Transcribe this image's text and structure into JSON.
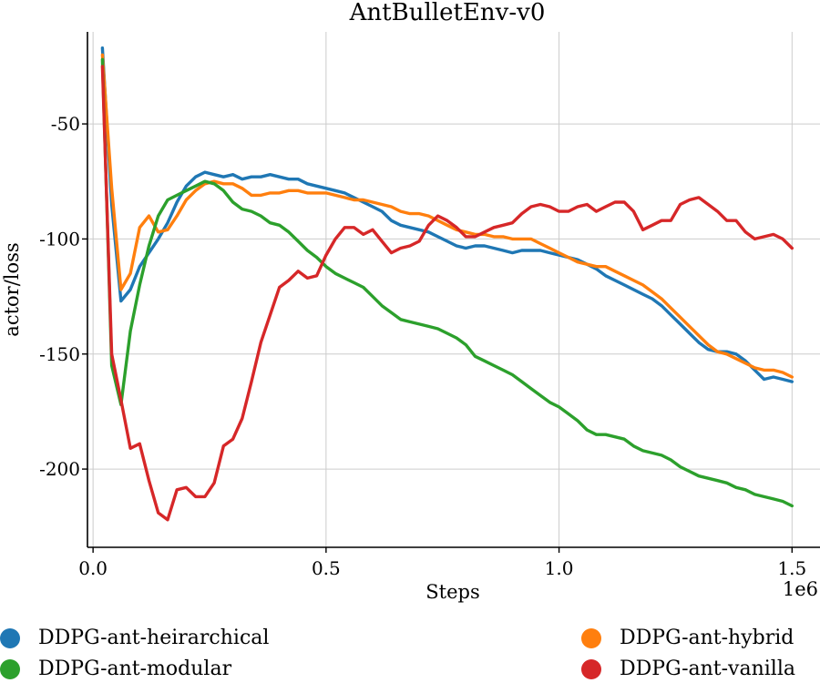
{
  "chart_data": {
    "type": "line",
    "title": "AntBulletEnv-v0",
    "xlabel": "Steps",
    "ylabel": "actor/loss",
    "x_offset_label": "1e6",
    "xlim": [
      -0.012,
      1.56
    ],
    "ylim": [
      -234,
      -10
    ],
    "x_ticks": [
      0.0,
      0.5,
      1.0,
      1.5
    ],
    "x_tick_labels": [
      "0.0",
      "0.5",
      "1.0",
      "1.5"
    ],
    "y_ticks": [
      -50,
      -100,
      -150,
      -200
    ],
    "y_tick_labels": [
      "-50",
      "-100",
      "-150",
      "-200"
    ],
    "grid": true,
    "legend_position": "bottom",
    "series": [
      {
        "name": "DDPG-ant-heirarchical",
        "color": "#1f77b4",
        "x": [
          0.02,
          0.04,
          0.06,
          0.08,
          0.1,
          0.12,
          0.14,
          0.16,
          0.18,
          0.2,
          0.22,
          0.24,
          0.26,
          0.28,
          0.3,
          0.32,
          0.34,
          0.36,
          0.38,
          0.4,
          0.42,
          0.44,
          0.46,
          0.48,
          0.5,
          0.52,
          0.54,
          0.56,
          0.58,
          0.6,
          0.62,
          0.64,
          0.66,
          0.68,
          0.7,
          0.72,
          0.74,
          0.76,
          0.78,
          0.8,
          0.82,
          0.84,
          0.86,
          0.88,
          0.9,
          0.92,
          0.94,
          0.96,
          0.98,
          1.0,
          1.02,
          1.04,
          1.06,
          1.08,
          1.1,
          1.12,
          1.14,
          1.16,
          1.18,
          1.2,
          1.22,
          1.24,
          1.26,
          1.28,
          1.3,
          1.32,
          1.34,
          1.36,
          1.38,
          1.4,
          1.42,
          1.44,
          1.46,
          1.48,
          1.5
        ],
        "values": [
          -17,
          -85,
          -127,
          -122,
          -112,
          -106,
          -100,
          -93,
          -84,
          -77,
          -73,
          -71,
          -72,
          -73,
          -72,
          -74,
          -73,
          -73,
          -72,
          -73,
          -74,
          -74,
          -76,
          -77,
          -78,
          -79,
          -80,
          -82,
          -84,
          -86,
          -88,
          -92,
          -94,
          -95,
          -96,
          -97,
          -99,
          -101,
          -103,
          -104,
          -103,
          -103,
          -104,
          -105,
          -106,
          -105,
          -105,
          -105,
          -106,
          -107,
          -108,
          -109,
          -111,
          -113,
          -116,
          -118,
          -120,
          -122,
          -124,
          -126,
          -129,
          -133,
          -137,
          -141,
          -145,
          -148,
          -149,
          -149,
          -150,
          -153,
          -157,
          -161,
          -160,
          -161,
          -162
        ]
      },
      {
        "name": "DDPG-ant-hybrid",
        "color": "#ff7f0e",
        "x": [
          0.02,
          0.04,
          0.06,
          0.08,
          0.1,
          0.12,
          0.14,
          0.16,
          0.18,
          0.2,
          0.22,
          0.24,
          0.26,
          0.28,
          0.3,
          0.32,
          0.34,
          0.36,
          0.38,
          0.4,
          0.42,
          0.44,
          0.46,
          0.48,
          0.5,
          0.52,
          0.54,
          0.56,
          0.58,
          0.6,
          0.62,
          0.64,
          0.66,
          0.68,
          0.7,
          0.72,
          0.74,
          0.76,
          0.78,
          0.8,
          0.82,
          0.84,
          0.86,
          0.88,
          0.9,
          0.92,
          0.94,
          0.96,
          0.98,
          1.0,
          1.02,
          1.04,
          1.06,
          1.08,
          1.1,
          1.12,
          1.14,
          1.16,
          1.18,
          1.2,
          1.22,
          1.24,
          1.26,
          1.28,
          1.3,
          1.32,
          1.34,
          1.36,
          1.38,
          1.4,
          1.42,
          1.44,
          1.46,
          1.48,
          1.5
        ],
        "values": [
          -20,
          -78,
          -122,
          -115,
          -95,
          -90,
          -97,
          -96,
          -90,
          -83,
          -79,
          -76,
          -75,
          -76,
          -76,
          -78,
          -81,
          -81,
          -80,
          -80,
          -79,
          -79,
          -80,
          -80,
          -80,
          -81,
          -82,
          -83,
          -83,
          -84,
          -85,
          -86,
          -88,
          -89,
          -89,
          -90,
          -92,
          -94,
          -96,
          -97,
          -98,
          -98,
          -99,
          -99,
          -100,
          -100,
          -100,
          -102,
          -104,
          -106,
          -108,
          -110,
          -111,
          -112,
          -112,
          -114,
          -116,
          -118,
          -120,
          -123,
          -126,
          -130,
          -134,
          -138,
          -142,
          -146,
          -149,
          -150,
          -152,
          -154,
          -156,
          -157,
          -157,
          -158,
          -160
        ]
      },
      {
        "name": "DDPG-ant-modular",
        "color": "#2ca02c",
        "x": [
          0.02,
          0.04,
          0.06,
          0.08,
          0.1,
          0.12,
          0.14,
          0.16,
          0.18,
          0.2,
          0.22,
          0.24,
          0.26,
          0.28,
          0.3,
          0.32,
          0.34,
          0.36,
          0.38,
          0.4,
          0.42,
          0.44,
          0.46,
          0.48,
          0.5,
          0.52,
          0.54,
          0.56,
          0.58,
          0.6,
          0.62,
          0.64,
          0.66,
          0.68,
          0.7,
          0.72,
          0.74,
          0.76,
          0.78,
          0.8,
          0.82,
          0.84,
          0.86,
          0.88,
          0.9,
          0.92,
          0.94,
          0.96,
          0.98,
          1.0,
          1.02,
          1.04,
          1.06,
          1.08,
          1.1,
          1.12,
          1.14,
          1.16,
          1.18,
          1.2,
          1.22,
          1.24,
          1.26,
          1.28,
          1.3,
          1.32,
          1.34,
          1.36,
          1.38,
          1.4,
          1.42,
          1.44,
          1.46,
          1.48,
          1.5
        ],
        "values": [
          -22,
          -155,
          -172,
          -140,
          -120,
          -103,
          -90,
          -83,
          -81,
          -79,
          -77,
          -75,
          -76,
          -79,
          -84,
          -87,
          -88,
          -90,
          -93,
          -94,
          -97,
          -101,
          -105,
          -108,
          -112,
          -115,
          -117,
          -119,
          -121,
          -125,
          -129,
          -132,
          -135,
          -136,
          -137,
          -138,
          -139,
          -141,
          -143,
          -146,
          -151,
          -153,
          -155,
          -157,
          -159,
          -162,
          -165,
          -168,
          -171,
          -173,
          -176,
          -179,
          -183,
          -185,
          -185,
          -186,
          -187,
          -190,
          -192,
          -193,
          -194,
          -196,
          -199,
          -201,
          -203,
          -204,
          -205,
          -206,
          -208,
          -209,
          -211,
          -212,
          -213,
          -214,
          -216
        ]
      },
      {
        "name": "DDPG-ant-vanilla",
        "color": "#d62728",
        "x": [
          0.02,
          0.04,
          0.06,
          0.08,
          0.1,
          0.12,
          0.14,
          0.16,
          0.18,
          0.2,
          0.22,
          0.24,
          0.26,
          0.28,
          0.3,
          0.32,
          0.34,
          0.36,
          0.38,
          0.4,
          0.42,
          0.44,
          0.46,
          0.48,
          0.5,
          0.52,
          0.54,
          0.56,
          0.58,
          0.6,
          0.62,
          0.64,
          0.66,
          0.68,
          0.7,
          0.72,
          0.74,
          0.76,
          0.78,
          0.8,
          0.82,
          0.84,
          0.86,
          0.88,
          0.9,
          0.92,
          0.94,
          0.96,
          0.98,
          1.0,
          1.02,
          1.04,
          1.06,
          1.08,
          1.1,
          1.12,
          1.14,
          1.16,
          1.18,
          1.2,
          1.22,
          1.24,
          1.26,
          1.28,
          1.3,
          1.32,
          1.34,
          1.36,
          1.38,
          1.4,
          1.42,
          1.44,
          1.46,
          1.48,
          1.5
        ],
        "values": [
          -25,
          -150,
          -170,
          -191,
          -189,
          -205,
          -219,
          -222,
          -209,
          -208,
          -212,
          -212,
          -206,
          -190,
          -187,
          -178,
          -162,
          -145,
          -133,
          -121,
          -118,
          -114,
          -117,
          -116,
          -107,
          -100,
          -95,
          -95,
          -98,
          -96,
          -101,
          -106,
          -104,
          -103,
          -101,
          -94,
          -90,
          -92,
          -95,
          -99,
          -99,
          -97,
          -95,
          -94,
          -93,
          -89,
          -86,
          -85,
          -86,
          -88,
          -88,
          -86,
          -85,
          -88,
          -86,
          -84,
          -84,
          -88,
          -96,
          -94,
          -92,
          -92,
          -85,
          -83,
          -82,
          -85,
          -88,
          -92,
          -92,
          -97,
          -100,
          -99,
          -98,
          -100,
          -104
        ]
      }
    ]
  },
  "legend": {
    "items": [
      {
        "label": "DDPG-ant-heirarchical",
        "color": "#1f77b4"
      },
      {
        "label": "DDPG-ant-hybrid",
        "color": "#ff7f0e"
      },
      {
        "label": "DDPG-ant-modular",
        "color": "#2ca02c"
      },
      {
        "label": "DDPG-ant-vanilla",
        "color": "#d62728"
      }
    ]
  }
}
